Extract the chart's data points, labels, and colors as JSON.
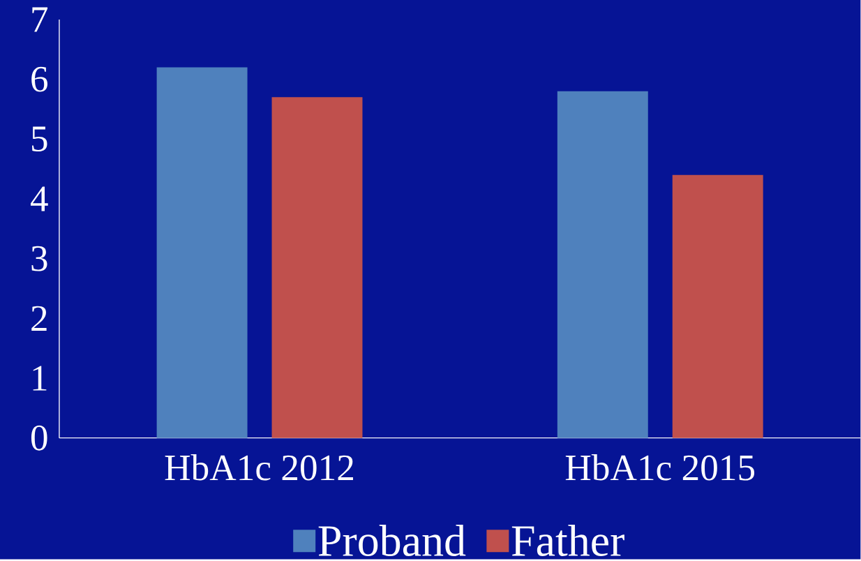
{
  "chart_data": {
    "type": "bar",
    "categories": [
      "HbA1c 2012",
      "HbA1c 2015"
    ],
    "series": [
      {
        "name": "Proband",
        "color": "#4f81bd",
        "values": [
          6.2,
          5.8
        ]
      },
      {
        "name": "Father",
        "color": "#c0504d",
        "values": [
          5.7,
          4.4
        ]
      }
    ],
    "ylim": [
      0,
      7
    ],
    "yticks": [
      0,
      1,
      2,
      3,
      4,
      5,
      6,
      7
    ],
    "grid": false,
    "legend": "bottom"
  }
}
